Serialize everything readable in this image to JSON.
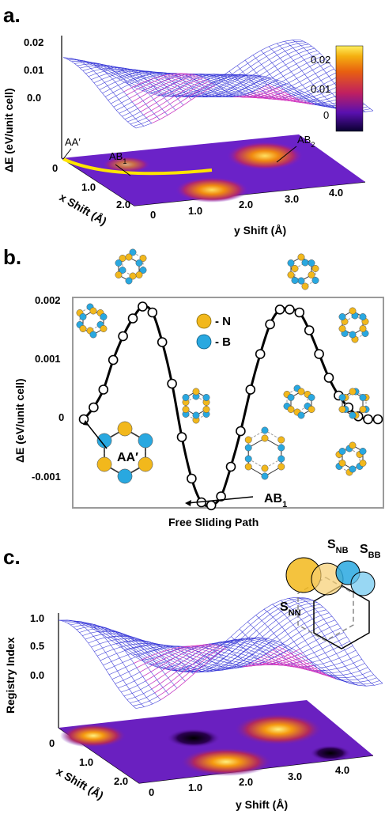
{
  "colors": {
    "mesh_blue": "#3a3ad8",
    "mesh_pink": "#e040c0",
    "path_yellow": "#ffe400",
    "line_black": "#000000",
    "atom_N": "#f2b81c",
    "atom_B": "#29a8e0",
    "frame_gray": "#9a9a9a"
  },
  "panel_a": {
    "label": "a.",
    "chart_data": {
      "type": "surface",
      "z_ticks": [
        "0.02",
        "0.01",
        "0.0"
      ],
      "ylabel": "ΔE (eV/unit cell)",
      "x_axis_label": "x Shift (Å)",
      "x_ticks": [
        "0",
        "1.0",
        "2.0"
      ],
      "y_axis_label": "y Shift (Å)",
      "y_ticks": [
        "0",
        "1.0",
        "2.0",
        "3.0",
        "4.0"
      ],
      "colorbar_ticks": [
        "0.02",
        "0.01",
        "0"
      ],
      "colorbar_range": [
        -0.002,
        0.025
      ],
      "annotations": [
        {
          "main": "AA",
          "sub": "",
          "suffix": "′"
        },
        {
          "main": "AB",
          "sub": "1",
          "suffix": ""
        },
        {
          "main": "AB",
          "sub": "2",
          "suffix": ""
        }
      ]
    }
  },
  "panel_b": {
    "label": "b.",
    "chart_data": {
      "type": "line",
      "xlabel": "Free Sliding Path",
      "ylabel": "ΔE (eV/unit cell)",
      "y_ticks": [
        "0.002",
        "0.001",
        "0",
        "-0.001"
      ],
      "ylim": [
        -0.0016,
        0.002
      ],
      "x": [
        0,
        1,
        2,
        3,
        4,
        5,
        6,
        7,
        8,
        9,
        10,
        11,
        12,
        13,
        14,
        15,
        16,
        17,
        18,
        19,
        20,
        21,
        22,
        23,
        24,
        25,
        26,
        27,
        28,
        29,
        30
      ],
      "values": [
        0,
        0.0002,
        0.0005,
        0.001,
        0.0014,
        0.0017,
        0.0019,
        0.0018,
        0.0013,
        0.0006,
        -0.0003,
        -0.001,
        -0.0014,
        -0.00145,
        -0.0013,
        -0.0008,
        -0.0002,
        0.0005,
        0.0011,
        0.0016,
        0.00185,
        0.00185,
        0.0018,
        0.0015,
        0.0011,
        0.0007,
        0.0004,
        0.0002,
        5e-05,
        0,
        0
      ],
      "legend": [
        {
          "symbol": "N",
          "label": "- N"
        },
        {
          "symbol": "B",
          "label": "- B"
        }
      ],
      "annotations": [
        {
          "main": "AA",
          "sub": "",
          "suffix": "′"
        },
        {
          "main": "AB",
          "sub": "1",
          "suffix": ""
        }
      ]
    }
  },
  "panel_c": {
    "label": "c.",
    "chart_data": {
      "type": "surface",
      "ylabel": "Registry Index",
      "z_ticks": [
        "1.0",
        "0.5",
        "0.0"
      ],
      "x_axis_label": "x Shift (Å)",
      "x_ticks": [
        "0",
        "1.0",
        "2.0"
      ],
      "y_axis_label": "y Shift (Å)",
      "y_ticks": [
        "0",
        "1.0",
        "2.0",
        "3.0",
        "4.0"
      ],
      "annotations": [
        {
          "main": "S",
          "sub": "NB"
        },
        {
          "main": "S",
          "sub": "BB"
        },
        {
          "main": "S",
          "sub": "NN"
        }
      ]
    }
  }
}
